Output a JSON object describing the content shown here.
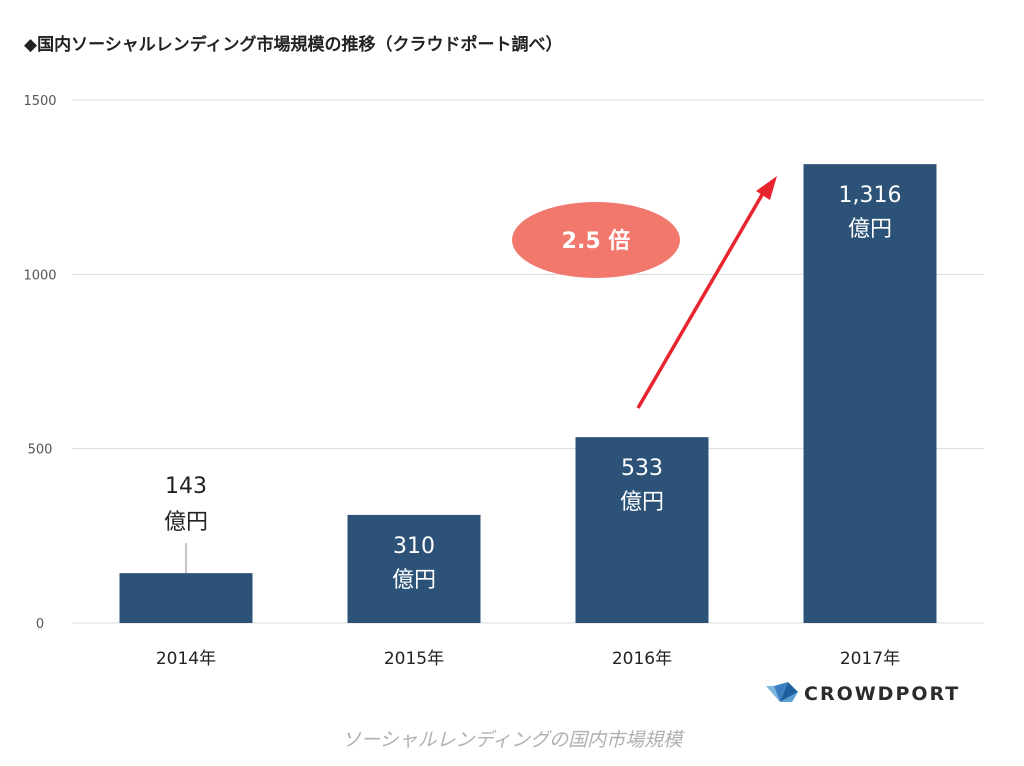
{
  "chart_data": {
    "type": "bar",
    "title": "◆国内ソーシャルレンディング市場規模の推移（クラウドポート調べ）",
    "categories": [
      "2014年",
      "2015年",
      "2016年",
      "2017年"
    ],
    "values": [
      143,
      310,
      533,
      1316
    ],
    "data_labels": [
      {
        "value": "143",
        "unit": "億円"
      },
      {
        "value": "310",
        "unit": "億円"
      },
      {
        "value": "533",
        "unit": "億円"
      },
      {
        "value": "1,316",
        "unit": "億円"
      }
    ],
    "y_ticks": [
      0,
      500,
      1000,
      1500
    ],
    "ylim": [
      0,
      1500
    ],
    "grid": true,
    "xlabel": "",
    "ylabel": "",
    "annotation": "2.5 倍",
    "colors": {
      "bar": "#2c5278",
      "gridline": "#dcdcdc",
      "arrow": "#e8242f",
      "badge": "#f2776c"
    }
  },
  "brand": {
    "name": "CROWDPORT",
    "logo_icon": "bird-logo-icon"
  },
  "caption": "ソーシャルレンディングの国内市場規模"
}
